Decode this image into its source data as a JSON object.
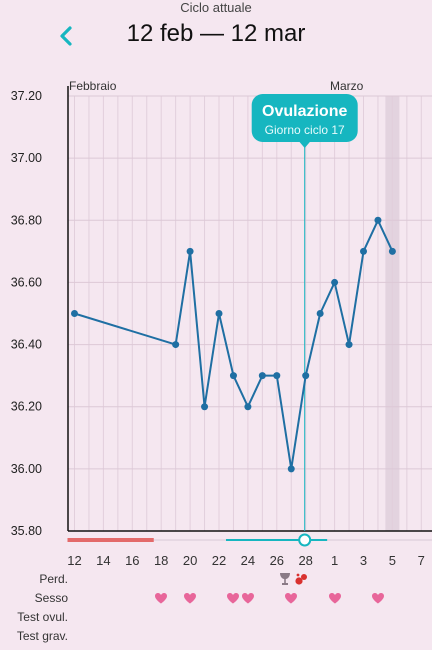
{
  "header": {
    "subtitle": "Ciclo attuale",
    "title": "12 feb — 12 mar",
    "back_icon": "chevron-left-icon"
  },
  "colors": {
    "accent": "#16b6c0",
    "line": "#1f6fa3",
    "period": "#e36a6a",
    "heart": "#e8669a",
    "background": "#f5e7f0"
  },
  "ovulation": {
    "title": "Ovulazione",
    "subtitle": "Giorno ciclo 17",
    "day_index": 16
  },
  "chart_data": {
    "type": "line",
    "ylim": [
      35.8,
      37.2
    ],
    "y_ticks": [
      "37.20",
      "37.00",
      "36.80",
      "36.60",
      "36.40",
      "36.20",
      "36.00",
      "35.80"
    ],
    "month_labels": [
      "Febbraio",
      "Marzo"
    ],
    "x_tick_labels": [
      "12",
      "14",
      "16",
      "18",
      "20",
      "22",
      "24",
      "26",
      "28",
      "1",
      "3",
      "5",
      "7"
    ],
    "series": [
      {
        "days": [
          0,
          7,
          8,
          9,
          10,
          11,
          12,
          13,
          14,
          15,
          16,
          17,
          18,
          19,
          20,
          21,
          22
        ],
        "values": [
          36.5,
          36.4,
          36.7,
          36.2,
          36.5,
          36.3,
          36.2,
          36.3,
          36.3,
          36.0,
          36.3,
          36.5,
          36.6,
          36.4,
          36.7,
          36.8,
          36.7
        ]
      }
    ],
    "highlight_day": 22
  },
  "rows": {
    "period_label": "Perd.",
    "sex_label": "Sesso",
    "ovulation_test_label": "Test ovul.",
    "pregnancy_test_label": "Test grav.",
    "sex_days": [
      6,
      8,
      11,
      12,
      15,
      18,
      21
    ],
    "period_icons": [
      "goblet-icon",
      "drops-icon"
    ]
  },
  "timeline": {
    "period_days": [
      0,
      5
    ],
    "fertile_days": [
      10,
      17
    ]
  }
}
